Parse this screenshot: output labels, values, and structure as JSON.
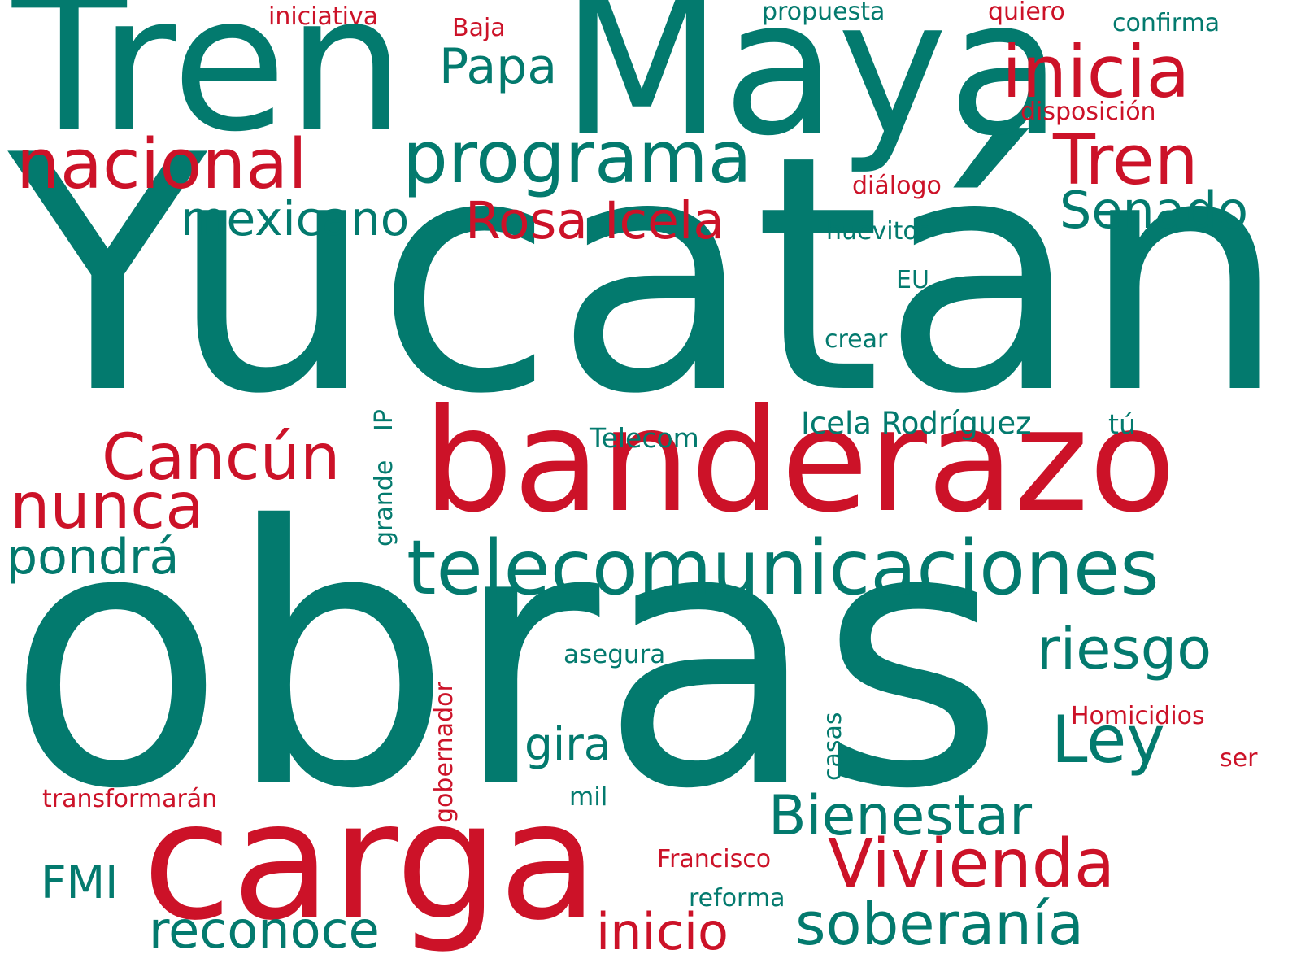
{
  "colors": {
    "green": "#037a6e",
    "red": "#cc1228",
    "background": "#ffffff"
  },
  "words": [
    {
      "text": "Yucatán",
      "color": "green"
    },
    {
      "text": "obras",
      "color": "green"
    },
    {
      "text": "Maya",
      "color": "green"
    },
    {
      "text": "Tren",
      "color": "green"
    },
    {
      "text": "banderazo",
      "color": "red"
    },
    {
      "text": "carga",
      "color": "red"
    },
    {
      "text": "telecomunicaciones",
      "color": "green"
    },
    {
      "text": "programa",
      "color": "green"
    },
    {
      "text": "inicia",
      "color": "red"
    },
    {
      "text": "nacional",
      "color": "red"
    },
    {
      "text": "Tren",
      "color": "red"
    },
    {
      "text": "Papa",
      "color": "green"
    },
    {
      "text": "Rosa Icela",
      "color": "red"
    },
    {
      "text": "mexicano",
      "color": "green"
    },
    {
      "text": "Senado",
      "color": "green"
    },
    {
      "text": "Cancún",
      "color": "red"
    },
    {
      "text": "nunca",
      "color": "red"
    },
    {
      "text": "pondrá",
      "color": "green"
    },
    {
      "text": "riesgo",
      "color": "green"
    },
    {
      "text": "Ley",
      "color": "green"
    },
    {
      "text": "Vivienda",
      "color": "red"
    },
    {
      "text": "Bienestar",
      "color": "green"
    },
    {
      "text": "soberanía",
      "color": "green"
    },
    {
      "text": "reconoce",
      "color": "green"
    },
    {
      "text": "inicio",
      "color": "red"
    },
    {
      "text": "gira",
      "color": "green"
    },
    {
      "text": "FMI",
      "color": "green"
    },
    {
      "text": "Icela Rodríguez",
      "color": "green"
    },
    {
      "text": "tú",
      "color": "green"
    },
    {
      "text": "Telecom",
      "color": "green"
    },
    {
      "text": "IP",
      "color": "green"
    },
    {
      "text": "grande",
      "color": "green"
    },
    {
      "text": "gobernador",
      "color": "red"
    },
    {
      "text": "casas",
      "color": "green"
    },
    {
      "text": "asegura",
      "color": "green"
    },
    {
      "text": "Homicidios",
      "color": "red"
    },
    {
      "text": "ser",
      "color": "red"
    },
    {
      "text": "mil",
      "color": "green"
    },
    {
      "text": "transformarán",
      "color": "red"
    },
    {
      "text": "Francisco",
      "color": "red"
    },
    {
      "text": "reforma",
      "color": "green"
    },
    {
      "text": "iniciativa",
      "color": "red"
    },
    {
      "text": "Baja",
      "color": "red"
    },
    {
      "text": "propuesta",
      "color": "green"
    },
    {
      "text": "quiero",
      "color": "red"
    },
    {
      "text": "confirma",
      "color": "green"
    },
    {
      "text": "disposición",
      "color": "red"
    },
    {
      "text": "diálogo",
      "color": "red"
    },
    {
      "text": "huevitos",
      "color": "green"
    },
    {
      "text": "EU",
      "color": "green"
    },
    {
      "text": "crear",
      "color": "green"
    }
  ]
}
